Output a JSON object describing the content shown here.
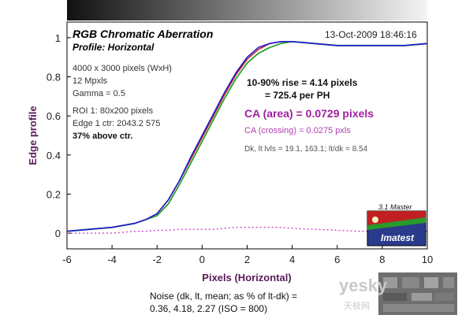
{
  "header": {
    "title": "RGB Chromatic Aberration",
    "subtitle": "Profile: Horizontal",
    "timestamp": "13-Oct-2009 18:46:16"
  },
  "info_lines": [
    "4000 x 3000 pixels (WxH)",
    "12 Mpxls",
    "Gamma = 0.5",
    "ROI 1: 80x200 pixels",
    "Edge 1 ctr: 2043.2  575"
  ],
  "info_bold": "37% above ctr.",
  "results": {
    "rise_line1": "10-90% rise = 4.14 pixels",
    "rise_line2": "= 725.4 per PH",
    "ca_area": "CA (area) = 0.0729 pixels",
    "ca_crossing": "CA (crossing) = 0.0275 pxls",
    "levels": "Dk, lt lvls = 19.1, 163.1;  lt/dk = 8.54"
  },
  "noise": {
    "line1": "Noise (dk, lt, mean; as % of lt-dk) =",
    "line2": "0.36,  4.18,  2.27  (ISO = 800)"
  },
  "logo": {
    "version": "3.1  Master",
    "brand": "Imatest"
  },
  "watermark": {
    "text": "yesky",
    "sub": "天极网"
  },
  "colors": {
    "red": "#d42020",
    "green": "#2aa02a",
    "blue": "#1a1ad0",
    "difference": "#cc44cc",
    "axis_label": "#5a1a5a"
  },
  "chart_data": {
    "type": "line",
    "title": "RGB Chromatic Aberration",
    "subtitle": "Profile: Horizontal",
    "xlabel": "Pixels (Horizontal)",
    "ylabel": "Edge profile",
    "xlim": [
      -6,
      10
    ],
    "ylim": [
      -0.08,
      1.08
    ],
    "xticks": [
      -6,
      -4,
      -2,
      0,
      2,
      4,
      6,
      8,
      10
    ],
    "yticks": [
      0,
      0.2,
      0.4,
      0.6,
      0.8,
      1
    ],
    "ytick_labels": [
      "0",
      "0.2",
      "0.4",
      "0.6",
      "0.8",
      "1"
    ],
    "grid": false,
    "x": [
      -6,
      -5,
      -4,
      -3.5,
      -3,
      -2.5,
      -2,
      -1.5,
      -1,
      -0.5,
      0,
      0.5,
      1,
      1.5,
      2,
      2.5,
      3,
      3.5,
      4,
      5,
      6,
      7,
      8,
      9,
      10
    ],
    "series": [
      {
        "values": [
          0.01,
          0.02,
          0.03,
          0.04,
          0.05,
          0.07,
          0.1,
          0.17,
          0.27,
          0.38,
          0.49,
          0.6,
          0.71,
          0.81,
          0.89,
          0.94,
          0.97,
          0.98,
          0.98,
          0.97,
          0.96,
          0.96,
          0.96,
          0.96,
          0.97
        ]
      },
      {
        "values": [
          0.01,
          0.02,
          0.03,
          0.04,
          0.05,
          0.07,
          0.09,
          0.15,
          0.25,
          0.36,
          0.47,
          0.58,
          0.69,
          0.79,
          0.87,
          0.92,
          0.95,
          0.97,
          0.98,
          0.97,
          0.96,
          0.96,
          0.96,
          0.96,
          0.97
        ]
      },
      {
        "values": [
          0.01,
          0.02,
          0.03,
          0.04,
          0.05,
          0.07,
          0.1,
          0.17,
          0.27,
          0.39,
          0.5,
          0.61,
          0.72,
          0.82,
          0.9,
          0.95,
          0.97,
          0.98,
          0.98,
          0.97,
          0.96,
          0.96,
          0.96,
          0.96,
          0.97
        ]
      },
      {
        "values": [
          0.0,
          0.0,
          0.0,
          0.005,
          0.01,
          0.01,
          0.015,
          0.015,
          0.02,
          0.02,
          0.02,
          0.02,
          0.025,
          0.03,
          0.03,
          0.03,
          0.03,
          0.03,
          0.025,
          0.02,
          0.015,
          0.01,
          0.01,
          0.01,
          0.01
        ]
      }
    ]
  }
}
